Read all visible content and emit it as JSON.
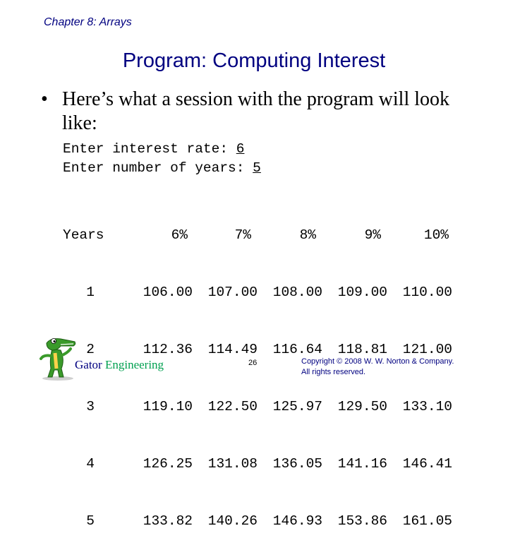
{
  "header": {
    "chapter": "Chapter 8: Arrays"
  },
  "slide": {
    "title": "Program: Computing Interest"
  },
  "bullet": {
    "marker": "•",
    "text": "Here’s what a session with the program will look like:"
  },
  "session": {
    "rate_prompt": "Enter interest rate: ",
    "rate_input": "6",
    "years_prompt": "Enter number of years: ",
    "years_input": "5"
  },
  "table": {
    "years_header": "Years",
    "rate_headers": [
      "6%",
      "7%",
      "8%",
      "9%",
      "10%"
    ],
    "rows": [
      {
        "year": "1",
        "values": [
          "106.00",
          "107.00",
          "108.00",
          "109.00",
          "110.00"
        ]
      },
      {
        "year": "2",
        "values": [
          "112.36",
          "114.49",
          "116.64",
          "118.81",
          "121.00"
        ]
      },
      {
        "year": "3",
        "values": [
          "119.10",
          "122.50",
          "125.97",
          "129.50",
          "133.10"
        ]
      },
      {
        "year": "4",
        "values": [
          "126.25",
          "131.08",
          "136.05",
          "141.16",
          "146.41"
        ]
      },
      {
        "year": "5",
        "values": [
          "133.82",
          "140.26",
          "146.93",
          "153.86",
          "161.05"
        ]
      }
    ]
  },
  "footer": {
    "gator_word": "Gator",
    "engineering_word": "Engineering",
    "page_number": "26",
    "copyright_line1": "Copyright © 2008 W. W. Norton & Company.",
    "copyright_line2": "All rights reserved."
  },
  "colors": {
    "title_navy": "#000080",
    "engineering_green": "#00a050",
    "gator_green": "#3a9a2a"
  },
  "icons": {
    "logo": "gator-mascot-icon"
  }
}
